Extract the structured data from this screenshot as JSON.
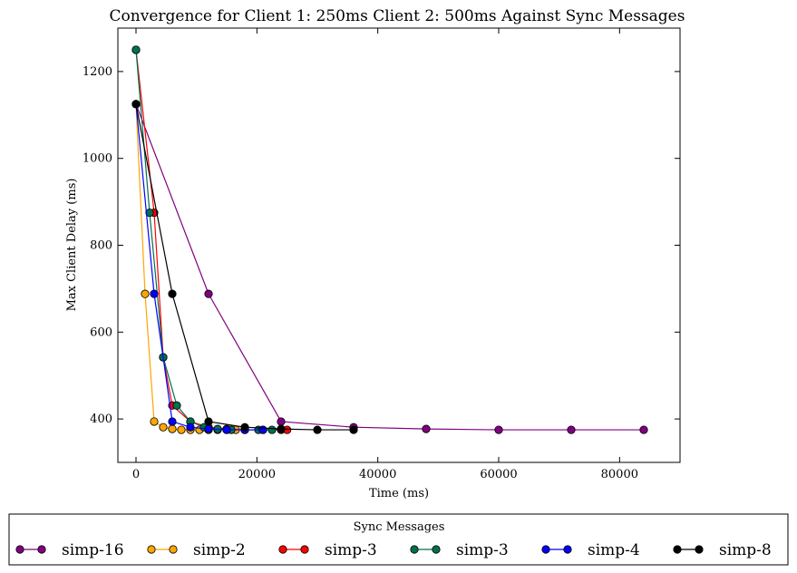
{
  "chart_data": {
    "type": "line",
    "title": "Convergence for Client 1: 250ms Client 2: 500ms Against Sync Messages",
    "xlabel": "Time (ms)",
    "ylabel": "Max Client Delay (ms)",
    "xlim": [
      -3000,
      90000
    ],
    "ylim": [
      300,
      1300
    ],
    "xticks": [
      0,
      20000,
      40000,
      60000,
      80000
    ],
    "yticks": [
      400,
      600,
      800,
      1000,
      1200
    ],
    "grid": false,
    "legend": {
      "title": "Sync Messages",
      "placement": "below"
    },
    "series": [
      {
        "name": "simp-16",
        "color": "#800080",
        "x": [
          0,
          12000,
          24000,
          36000,
          48000,
          60000,
          72000,
          84000
        ],
        "y": [
          1125,
          688,
          394,
          381,
          377,
          375,
          375,
          375
        ]
      },
      {
        "name": "simp-2",
        "color": "#FFA500",
        "x": [
          0,
          1500,
          3000,
          4500,
          6000,
          7500,
          9000,
          10500,
          12000,
          13500,
          15000,
          16500
        ],
        "y": [
          1125,
          688,
          394,
          381,
          377,
          375,
          375,
          375,
          375,
          375,
          375,
          375
        ]
      },
      {
        "name": "simp-3",
        "color": "#FF0000",
        "x": [
          0,
          3000,
          4500,
          6000,
          9000,
          12000,
          15000,
          18000,
          21000,
          24000,
          25000
        ],
        "y": [
          1250,
          875,
          542,
          431,
          394,
          381,
          377,
          375,
          375,
          375,
          375
        ]
      },
      {
        "name": "simp-3",
        "color": "#007050",
        "x": [
          0,
          2250,
          4500,
          6750,
          9000,
          11250,
          13500,
          15750,
          18000,
          20250,
          22500
        ],
        "y": [
          1250,
          875,
          542,
          431,
          394,
          381,
          377,
          375,
          375,
          375,
          375
        ]
      },
      {
        "name": "simp-4",
        "color": "#0000FF",
        "x": [
          0,
          3000,
          6000,
          9000,
          12000,
          15000,
          18000,
          21000
        ],
        "y": [
          1125,
          688,
          394,
          381,
          377,
          375,
          375,
          375
        ]
      },
      {
        "name": "simp-8",
        "color": "#000000",
        "x": [
          0,
          6000,
          12000,
          18000,
          24000,
          30000,
          36000
        ],
        "y": [
          1125,
          688,
          394,
          381,
          377,
          375,
          375
        ]
      }
    ]
  }
}
